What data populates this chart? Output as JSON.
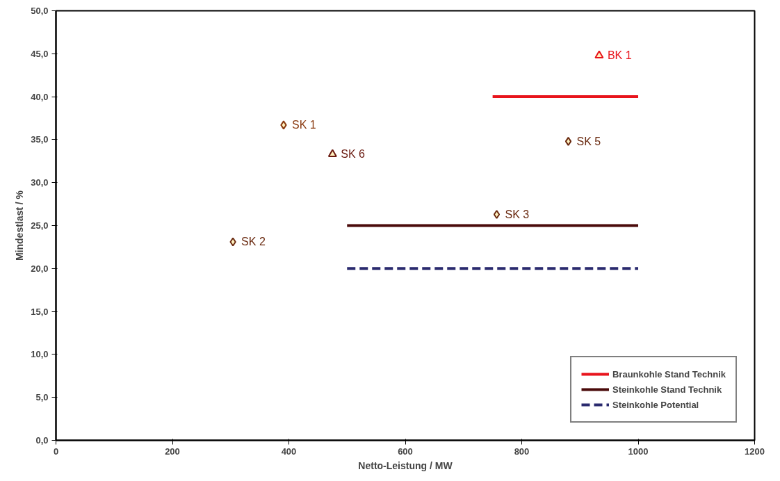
{
  "chart_data": {
    "type": "scatter",
    "xlabel": "Netto-Leistung / MW",
    "ylabel": "Mindestlast / %",
    "xlim": [
      0,
      1200
    ],
    "xticks": [
      0,
      200,
      400,
      600,
      800,
      1000,
      1200
    ],
    "ylim": [
      0,
      50
    ],
    "yticks": [
      {
        "value": 0,
        "label": "0,0"
      },
      {
        "value": 5,
        "label": "5,0"
      },
      {
        "value": 10,
        "label": "10,0"
      },
      {
        "value": 15,
        "label": "15,0"
      },
      {
        "value": 20,
        "label": "20,0"
      },
      {
        "value": 25,
        "label": "25,0"
      },
      {
        "value": 30,
        "label": "30,0"
      },
      {
        "value": 35,
        "label": "35,0"
      },
      {
        "value": 40,
        "label": "40,0"
      },
      {
        "value": 45,
        "label": "45,0"
      },
      {
        "value": 50,
        "label": "50,0"
      }
    ],
    "grid": false,
    "legend": "bottom right",
    "series": [
      {
        "type": "line",
        "name": "Braunkohle Stand Technik",
        "color": "#e8141c",
        "x": [
          750,
          1000
        ],
        "values": [
          40,
          40
        ],
        "line_style": "solid"
      },
      {
        "type": "line",
        "name": "Steinkohle Stand Technik",
        "color": "#4a0a0a",
        "x": [
          500,
          1000
        ],
        "values": [
          25,
          25
        ],
        "line_style": "solid"
      },
      {
        "type": "line",
        "name": "Steinkohle Potential",
        "color": "#2a2a6e",
        "x": [
          500,
          1000
        ],
        "values": [
          20,
          20
        ],
        "line_style": "dashed"
      },
      {
        "name": "SK 1",
        "color": "#8a3a10",
        "x": [
          391
        ],
        "values": [
          36.7
        ],
        "marker": "diamond"
      },
      {
        "name": "SK 2",
        "color": "#6a2a10",
        "x": [
          304
        ],
        "values": [
          23.1
        ],
        "marker": "diamond"
      },
      {
        "name": "SK 3",
        "color": "#6a2a10",
        "x": [
          757
        ],
        "values": [
          26.3
        ],
        "marker": "diamond"
      },
      {
        "name": "SK 5",
        "color": "#6a2a10",
        "x": [
          880
        ],
        "values": [
          34.8
        ],
        "marker": "diamond"
      },
      {
        "name": "SK 6",
        "color": "#6a1a10",
        "x": [
          475
        ],
        "values": [
          33.3
        ],
        "marker": "triangle"
      },
      {
        "name": "BK 1",
        "color": "#e8141c",
        "x": [
          933
        ],
        "values": [
          44.8
        ],
        "marker": "triangle"
      }
    ]
  }
}
